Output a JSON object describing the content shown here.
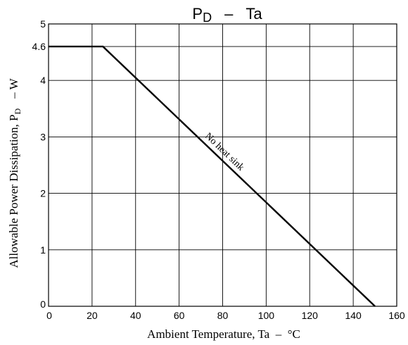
{
  "chart_data": {
    "type": "line",
    "title": {
      "main": "P",
      "main_sub": "D",
      "dash": "–",
      "right": "Ta"
    },
    "xlabel": "Ambient Temperature, Ta  –  °C",
    "ylabel": {
      "main": "Allowable Power Dissipation, P",
      "sub": "D",
      "unit": "–  W"
    },
    "xlim": [
      0,
      160
    ],
    "ylim": [
      0,
      5
    ],
    "x_ticks": [
      0,
      20,
      40,
      60,
      80,
      100,
      120,
      140,
      160
    ],
    "y_ticks": [
      {
        "value": 0,
        "label": "0"
      },
      {
        "value": 1,
        "label": "1"
      },
      {
        "value": 2,
        "label": "2"
      },
      {
        "value": 3,
        "label": "3"
      },
      {
        "value": 4,
        "label": "4"
      },
      {
        "value": 4.6,
        "label": "4.6"
      },
      {
        "value": 5,
        "label": "5"
      }
    ],
    "grid": true,
    "series": [
      {
        "name": "No heat sink",
        "x": [
          0,
          25,
          150
        ],
        "y": [
          4.6,
          4.6,
          0
        ]
      }
    ],
    "annotations": [
      {
        "text": "No heat sink",
        "series": 0,
        "x": 80,
        "y": 2.7
      }
    ]
  }
}
